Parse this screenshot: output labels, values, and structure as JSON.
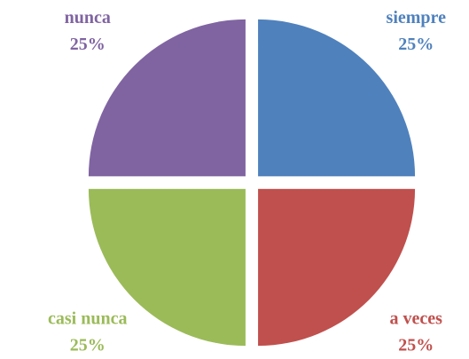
{
  "chart_data": {
    "type": "pie",
    "categories": [
      "siempre",
      "a veces",
      "casi nunca",
      "nunca"
    ],
    "values": [
      25,
      25,
      25,
      25
    ],
    "value_labels": [
      "25%",
      "25%",
      "25%",
      "25%"
    ],
    "colors": [
      "#4f81bd",
      "#c0504d",
      "#9bbb59",
      "#8064a2"
    ]
  }
}
